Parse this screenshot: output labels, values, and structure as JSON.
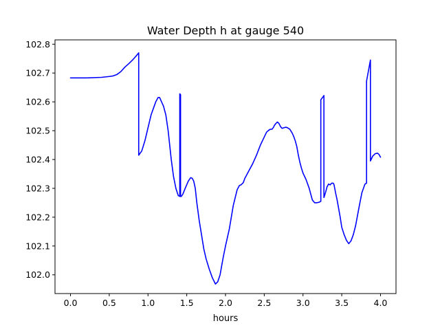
{
  "chart_data": {
    "type": "line",
    "title": "Water Depth h at gauge 540",
    "xlabel": "hours",
    "ylabel": "",
    "xlim": [
      -0.2,
      4.2
    ],
    "ylim": [
      101.935,
      102.815
    ],
    "xticks": [
      0.0,
      0.5,
      1.0,
      1.5,
      2.0,
      2.5,
      3.0,
      3.5,
      4.0
    ],
    "xtick_labels": [
      "0.0",
      "0.5",
      "1.0",
      "1.5",
      "2.0",
      "2.5",
      "3.0",
      "3.5",
      "4.0"
    ],
    "yticks": [
      102.0,
      102.1,
      102.2,
      102.3,
      102.4,
      102.5,
      102.6,
      102.7,
      102.8
    ],
    "ytick_labels": [
      "102.0",
      "102.1",
      "102.2",
      "102.3",
      "102.4",
      "102.5",
      "102.6",
      "102.7",
      "102.8"
    ],
    "grid": false,
    "legend": "none",
    "series": [
      {
        "color": "#0000ff",
        "x": [
          0.0,
          0.2,
          0.4,
          0.5,
          0.55,
          0.6,
          0.65,
          0.7,
          0.75,
          0.8,
          0.85,
          0.88,
          0.88,
          0.92,
          0.96,
          1.0,
          1.04,
          1.08,
          1.1,
          1.13,
          1.15,
          1.17,
          1.2,
          1.23,
          1.26,
          1.3,
          1.33,
          1.36,
          1.39,
          1.41,
          1.41,
          1.42,
          1.42,
          1.43,
          1.45,
          1.48,
          1.52,
          1.55,
          1.57,
          1.59,
          1.61,
          1.63,
          1.66,
          1.69,
          1.72,
          1.75,
          1.79,
          1.83,
          1.87,
          1.9,
          1.93,
          1.95,
          1.97,
          2.0,
          2.05,
          2.1,
          2.15,
          2.18,
          2.2,
          2.23,
          2.25,
          2.27,
          2.3,
          2.35,
          2.4,
          2.45,
          2.5,
          2.53,
          2.56,
          2.58,
          2.6,
          2.62,
          2.63,
          2.65,
          2.67,
          2.69,
          2.71,
          2.73,
          2.75,
          2.78,
          2.8,
          2.83,
          2.86,
          2.88,
          2.9,
          2.92,
          2.94,
          2.96,
          2.98,
          3.0,
          3.04,
          3.08,
          3.12,
          3.15,
          3.18,
          3.21,
          3.23,
          3.23,
          3.27,
          3.27,
          3.29,
          3.31,
          3.33,
          3.35,
          3.37,
          3.39,
          3.4,
          3.42,
          3.44,
          3.46,
          3.48,
          3.5,
          3.53,
          3.56,
          3.59,
          3.62,
          3.65,
          3.68,
          3.72,
          3.76,
          3.8,
          3.82,
          3.82,
          3.87,
          3.87,
          3.9,
          3.93,
          3.96,
          3.98,
          4.0
        ],
        "y": [
          102.683,
          102.683,
          102.685,
          102.688,
          102.69,
          102.695,
          102.705,
          102.72,
          102.732,
          102.745,
          102.76,
          102.77,
          102.415,
          102.43,
          102.465,
          102.51,
          102.555,
          102.585,
          102.6,
          102.615,
          102.615,
          102.603,
          102.585,
          102.555,
          102.5,
          102.4,
          102.34,
          102.3,
          102.275,
          102.272,
          102.628,
          102.625,
          102.272,
          102.272,
          102.28,
          102.3,
          102.325,
          102.337,
          102.335,
          102.325,
          102.3,
          102.25,
          102.19,
          102.14,
          102.09,
          102.055,
          102.02,
          101.99,
          101.968,
          101.976,
          102.0,
          102.03,
          102.06,
          102.1,
          102.16,
          102.24,
          102.295,
          102.31,
          102.312,
          102.32,
          102.335,
          102.345,
          102.36,
          102.385,
          102.415,
          102.45,
          102.478,
          102.495,
          102.502,
          102.505,
          102.505,
          102.512,
          102.518,
          102.525,
          102.53,
          102.525,
          102.514,
          102.508,
          102.51,
          102.512,
          102.51,
          102.505,
          102.492,
          102.48,
          102.465,
          102.445,
          102.415,
          102.39,
          102.37,
          102.353,
          102.33,
          102.3,
          102.26,
          102.25,
          102.25,
          102.252,
          102.255,
          102.607,
          102.622,
          102.268,
          102.285,
          102.305,
          102.315,
          102.312,
          102.318,
          102.318,
          102.313,
          102.285,
          102.26,
          102.23,
          102.2,
          102.165,
          102.14,
          102.12,
          102.108,
          102.118,
          102.14,
          102.172,
          102.23,
          102.285,
          102.315,
          102.318,
          102.672,
          102.745,
          102.395,
          102.412,
          102.42,
          102.422,
          102.418,
          102.408
        ]
      }
    ]
  }
}
